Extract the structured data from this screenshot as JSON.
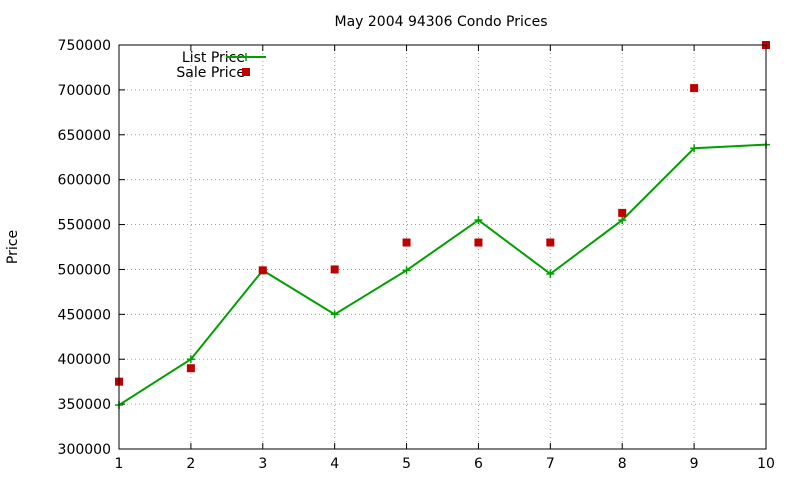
{
  "chart_data": {
    "type": "line",
    "title": "May 2004 94306 Condo Prices",
    "xlabel": "",
    "ylabel": "Price",
    "xlim": [
      1,
      10
    ],
    "ylim": [
      300000,
      750000
    ],
    "x_ticks": [
      "1",
      "2",
      "3",
      "4",
      "5",
      "6",
      "7",
      "8",
      "9",
      "10"
    ],
    "y_ticks": [
      "300000",
      "350000",
      "400000",
      "450000",
      "500000",
      "550000",
      "600000",
      "650000",
      "700000",
      "750000"
    ],
    "grid": true,
    "legend_position": "top-left",
    "x": [
      1,
      2,
      3,
      4,
      5,
      6,
      7,
      8,
      9,
      10
    ],
    "series": [
      {
        "name": "List Price",
        "style": "linespoints",
        "marker": "plus",
        "color": "#00a000",
        "values": [
          349000,
          400000,
          499000,
          450000,
          499000,
          555000,
          495000,
          555000,
          635000,
          639000
        ]
      },
      {
        "name": "Sale Price",
        "style": "points",
        "marker": "square",
        "color": "#c00000",
        "values": [
          375000,
          390000,
          499000,
          500000,
          530000,
          530000,
          530000,
          563000,
          702000,
          750000
        ]
      }
    ]
  }
}
